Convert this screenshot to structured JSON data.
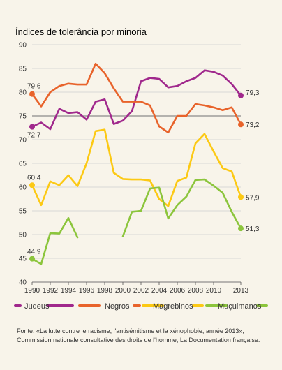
{
  "chart_data": {
    "type": "line",
    "title": "Índices de tolerância por minoria",
    "xlabel": "",
    "ylabel": "",
    "xlim": [
      1990,
      2013
    ],
    "ylim": [
      40,
      90
    ],
    "x_ticks": [
      "1990",
      "1992",
      "1994",
      "1996",
      "1998",
      "2000",
      "2002",
      "2004",
      "2006",
      "2008",
      "2010",
      "2013"
    ],
    "y_ticks": [
      "40",
      "45",
      "50",
      "55",
      "60",
      "65",
      "70",
      "75",
      "80",
      "85",
      "90"
    ],
    "grid": false,
    "reference_line": 75,
    "legend_position": "bottom",
    "series": [
      {
        "name": "Judeus",
        "color": "#a0288c",
        "start_label": "72,7",
        "end_label": "79,3",
        "points": [
          [
            1990,
            72.7
          ],
          [
            1991,
            73.6
          ],
          [
            1992,
            72.2
          ],
          [
            1993,
            76.5
          ],
          [
            1994,
            75.6
          ],
          [
            1995,
            75.8
          ],
          [
            1996,
            74.2
          ],
          [
            1997,
            78
          ],
          [
            1998,
            78.5
          ],
          [
            1999,
            73.3
          ],
          [
            2000,
            74
          ],
          [
            2001,
            76
          ],
          [
            2002,
            82.3
          ],
          [
            2003,
            83
          ],
          [
            2004,
            82.8
          ],
          [
            2005,
            81
          ],
          [
            2006,
            81.3
          ],
          [
            2007,
            82.3
          ],
          [
            2008,
            83
          ],
          [
            2009,
            84.6
          ],
          [
            2010,
            84.3
          ],
          [
            2011,
            83.5
          ],
          [
            2012,
            81.7
          ],
          [
            2013,
            79.3
          ]
        ]
      },
      {
        "name": "Negros",
        "color": "#e8632b",
        "start_label": "79,6",
        "end_label": "73,2",
        "points": [
          [
            1990,
            79.6
          ],
          [
            1991,
            77
          ],
          [
            1992,
            80
          ],
          [
            1993,
            81.3
          ],
          [
            1994,
            81.8
          ],
          [
            1995,
            81.6
          ],
          [
            1996,
            81.6
          ],
          [
            1997,
            86
          ],
          [
            1998,
            84
          ],
          [
            1999,
            80.8
          ],
          [
            2000,
            78
          ],
          [
            2001,
            78
          ],
          [
            2002,
            78
          ],
          [
            2003,
            77.2
          ],
          [
            2004,
            72.8
          ],
          [
            2005,
            71.5
          ],
          [
            2006,
            75
          ],
          [
            2007,
            75
          ],
          [
            2008,
            77.5
          ],
          [
            2009,
            77.2
          ],
          [
            2010,
            76.8
          ],
          [
            2011,
            76.2
          ],
          [
            2012,
            76.8
          ],
          [
            2013,
            73.2
          ]
        ]
      },
      {
        "name": "Magrebinos",
        "color": "#fcc914",
        "start_label": "60,4",
        "end_label": "57,9",
        "points": [
          [
            1990,
            60.4
          ],
          [
            1991,
            56.2
          ],
          [
            1992,
            61.2
          ],
          [
            1993,
            60.4
          ],
          [
            1994,
            62.5
          ],
          [
            1995,
            60.2
          ],
          [
            1996,
            65
          ],
          [
            1997,
            71.8
          ],
          [
            1998,
            72.1
          ],
          [
            1999,
            63
          ],
          [
            2000,
            61.7
          ],
          [
            2001,
            61.6
          ],
          [
            2002,
            61.6
          ],
          [
            2003,
            61.4
          ],
          [
            2004,
            57.5
          ],
          [
            2005,
            56
          ],
          [
            2006,
            61.3
          ],
          [
            2007,
            62
          ],
          [
            2008,
            69.2
          ],
          [
            2009,
            71.2
          ],
          [
            2010,
            67.5
          ],
          [
            2011,
            64
          ],
          [
            2012,
            63.3
          ],
          [
            2013,
            57.9
          ]
        ]
      },
      {
        "name": "Muçulmanos",
        "color": "#8cc53c",
        "start_label": "44,9",
        "end_label": "51,3",
        "segments": [
          [
            [
              1990,
              44.9
            ],
            [
              1991,
              43.8
            ],
            [
              1992,
              50.3
            ],
            [
              1993,
              50.2
            ],
            [
              1994,
              53.5
            ],
            [
              1995,
              49.4
            ]
          ],
          [
            [
              2000,
              49.6
            ],
            [
              2001,
              54.8
            ],
            [
              2002,
              55
            ],
            [
              2003,
              59.7
            ],
            [
              2004,
              59.9
            ],
            [
              2005,
              53.4
            ],
            [
              2006,
              56.2
            ],
            [
              2007,
              58
            ],
            [
              2008,
              61.5
            ],
            [
              2009,
              61.6
            ],
            [
              2010,
              60.3
            ],
            [
              2011,
              58.8
            ],
            [
              2012,
              54.8
            ],
            [
              2013,
              51.3
            ]
          ]
        ]
      }
    ]
  },
  "source": "Fonte: «La lutte contre le racisme, l'antisémitisme et la xénophobie, année 2013», Commission nationale consultative des droits de l'homme, La Documentation française."
}
